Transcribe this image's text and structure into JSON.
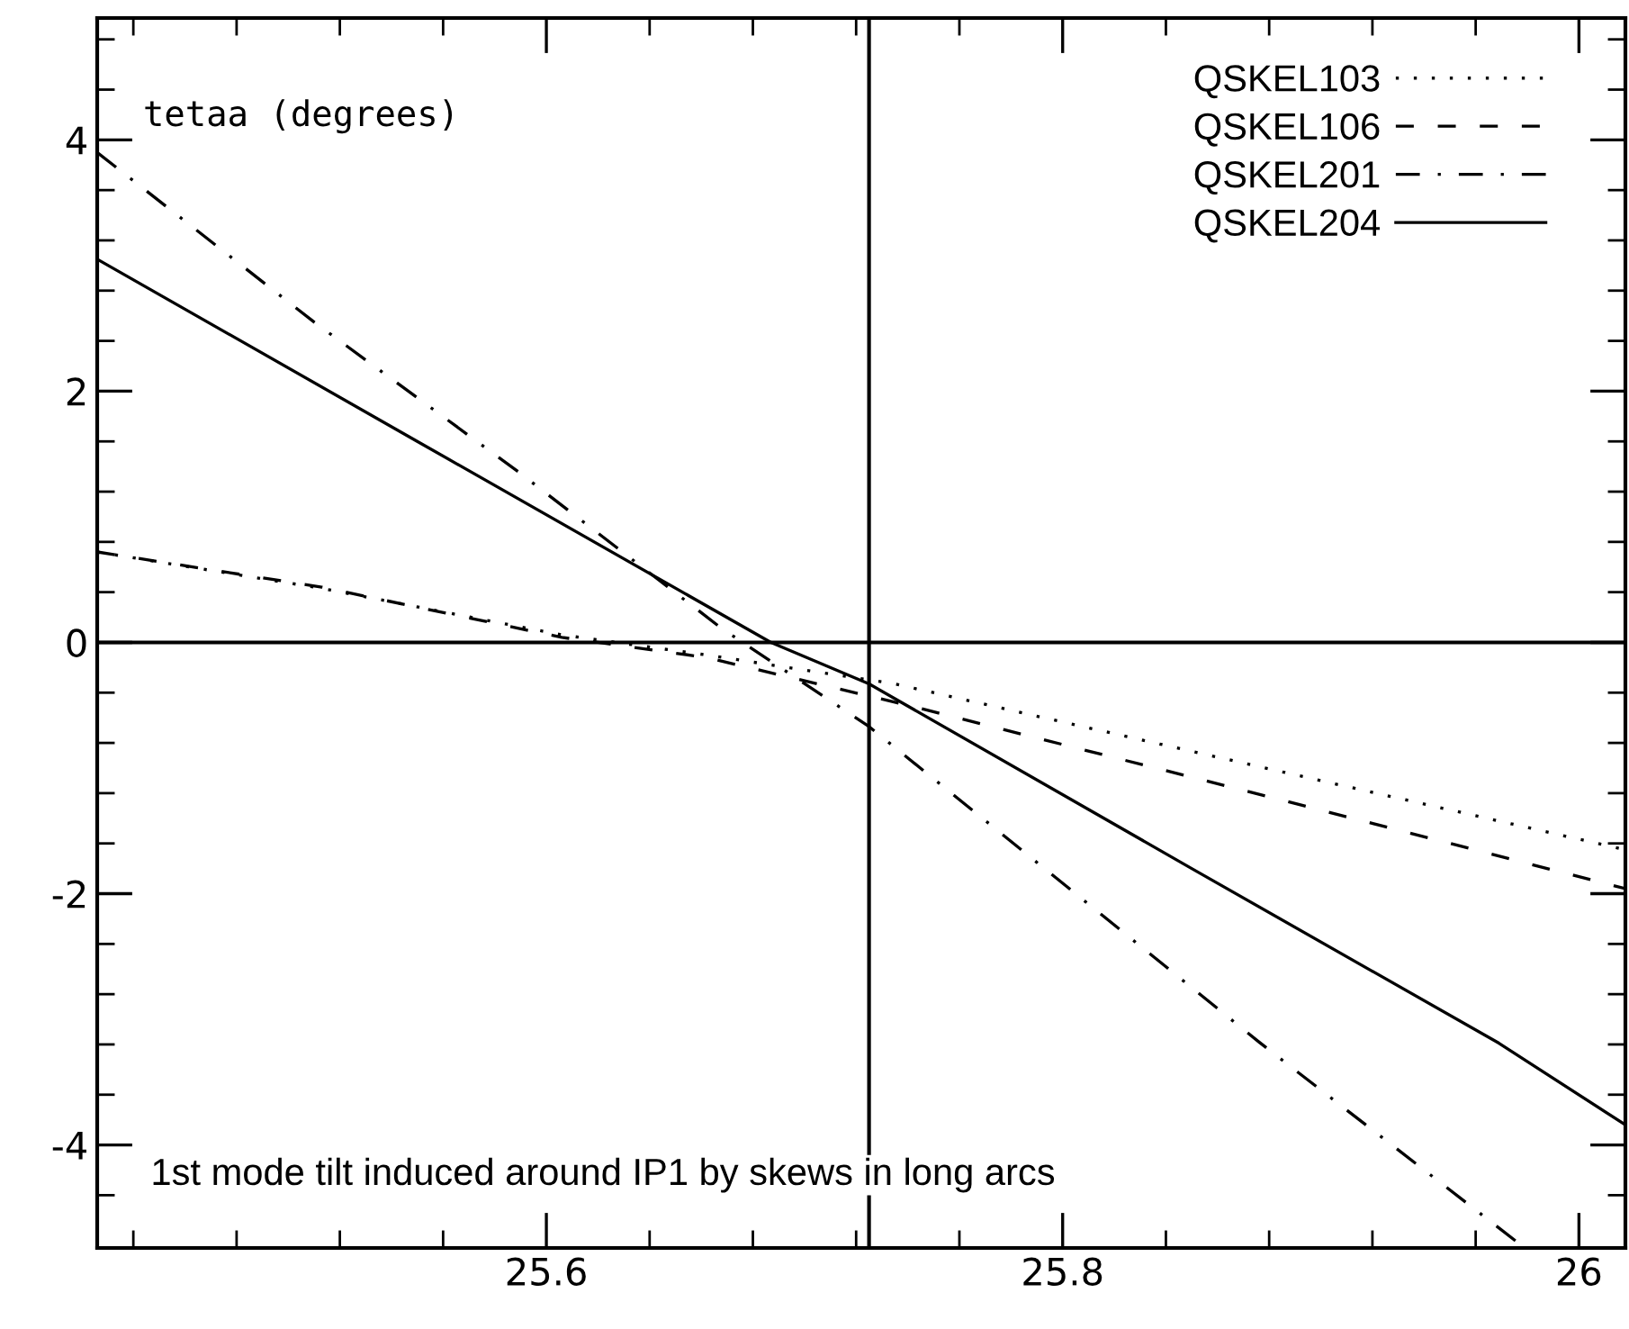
{
  "chart_data": {
    "type": "line",
    "ylabel": "tetaa (degrees)",
    "annotations": [
      "1st mode tilt induced around IP1 by skews in long arcs"
    ],
    "xlim": [
      25.426,
      26.018
    ],
    "ylim": [
      -4.82,
      4.97
    ],
    "xticks": [
      {
        "value": 25.44,
        "label": null
      },
      {
        "value": 25.48,
        "label": null
      },
      {
        "value": 25.52,
        "label": null
      },
      {
        "value": 25.56,
        "label": null
      },
      25.6,
      {
        "value": 25.64,
        "label": null
      },
      {
        "value": 25.68,
        "label": null
      },
      {
        "value": 25.72,
        "label": null
      },
      {
        "value": 25.76,
        "label": null
      },
      25.8,
      {
        "value": 25.84,
        "label": null
      },
      {
        "value": 25.88,
        "label": null
      },
      {
        "value": 25.92,
        "label": null
      },
      {
        "value": 25.96,
        "label": null
      },
      {
        "value": 26,
        "label": "26"
      }
    ],
    "yticks": [
      {
        "value": -4.4,
        "label": null
      },
      -4,
      {
        "value": -3.6,
        "label": null
      },
      {
        "value": -3.2,
        "label": null
      },
      {
        "value": -2.8,
        "label": null
      },
      {
        "value": -2.4,
        "label": null
      },
      -2,
      {
        "value": -1.6,
        "label": null
      },
      {
        "value": -1.2,
        "label": null
      },
      {
        "value": -0.8,
        "label": null
      },
      {
        "value": -0.4,
        "label": null
      },
      0,
      {
        "value": 0.4,
        "label": null
      },
      {
        "value": 0.8,
        "label": null
      },
      {
        "value": 1.2,
        "label": null
      },
      {
        "value": 1.6,
        "label": null
      },
      2,
      {
        "value": 2.4,
        "label": null
      },
      {
        "value": 2.8,
        "label": null
      },
      {
        "value": 3.2,
        "label": null
      },
      {
        "value": 3.6,
        "label": null
      },
      4,
      {
        "value": 4.4,
        "label": null
      },
      {
        "value": 4.8,
        "label": null
      }
    ],
    "ref_lines": [
      {
        "axis": "y",
        "value": 0,
        "label": null,
        "color": "#000000"
      },
      {
        "axis": "x",
        "value": 25.725,
        "label": null,
        "color": "#000000"
      }
    ],
    "legend": "top right",
    "grid": false,
    "series": [
      {
        "name": "QSKEL103",
        "color": "#000000",
        "line_style": "dotted",
        "x": [
          25.426,
          25.513,
          25.606,
          25.662,
          25.735,
          25.9,
          26.018
        ],
        "values": [
          0.72,
          0.43,
          0.06,
          -0.1,
          -0.33,
          -1.1,
          -1.65
        ]
      },
      {
        "name": "QSKEL106",
        "color": "#000000",
        "line_style": "dashed",
        "x": [
          25.426,
          25.513,
          25.606,
          25.662,
          25.74,
          25.884,
          26.018
        ],
        "values": [
          0.72,
          0.44,
          0.04,
          -0.12,
          -0.5,
          -1.25,
          -1.96
        ]
      },
      {
        "name": "QSKEL201",
        "color": "#000000",
        "line_style": "dashdot",
        "x": [
          25.426,
          25.51,
          25.589,
          25.668,
          25.725,
          25.876,
          25.979
        ],
        "values": [
          3.9,
          2.55,
          1.36,
          0.11,
          -0.67,
          -3.18,
          -4.82
        ]
      },
      {
        "name": "QSKEL204",
        "color": "#000000",
        "line_style": "solid",
        "x": [
          25.426,
          25.55,
          25.687,
          25.725,
          25.85,
          25.969,
          26.018
        ],
        "values": [
          3.05,
          1.6,
          0.0,
          -0.33,
          -1.8,
          -3.19,
          -3.84
        ]
      }
    ]
  }
}
